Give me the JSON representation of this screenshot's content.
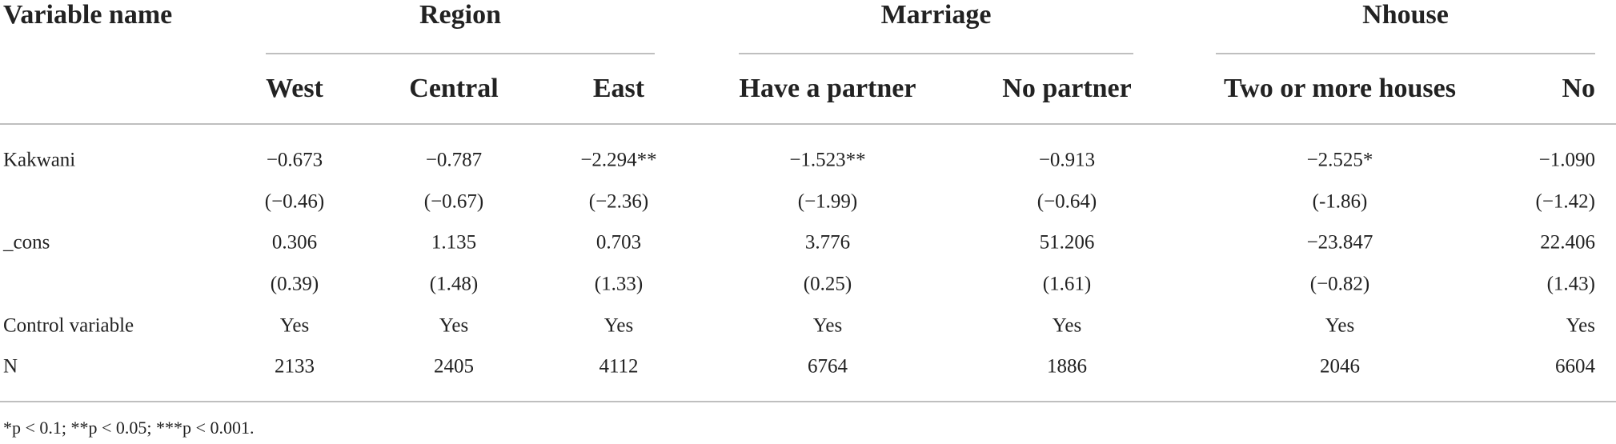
{
  "header": {
    "first": "Variable name",
    "groups": [
      {
        "label": "Region",
        "columns": [
          "West",
          "Central",
          "East"
        ]
      },
      {
        "label": "Marriage",
        "columns": [
          "Have a partner",
          "No partner"
        ]
      },
      {
        "label": "Nhouse",
        "columns": [
          "Two or more houses",
          "No"
        ]
      }
    ]
  },
  "table": {
    "rows": [
      {
        "label": "Kakwani",
        "values": [
          "−0.673",
          "−0.787",
          "−2.294**",
          "−1.523**",
          "−0.913",
          "−2.525*",
          "−1.090"
        ]
      },
      {
        "values": [
          "(−0.46)",
          "(−0.67)",
          "(−2.36)",
          "(−1.99)",
          "(−0.64)",
          "(-1.86)",
          "(−1.42)"
        ]
      },
      {
        "label": "_cons",
        "values": [
          "0.306",
          "1.135",
          "0.703",
          "3.776",
          "51.206",
          "−23.847",
          "22.406"
        ]
      },
      {
        "values": [
          "(0.39)",
          "(1.48)",
          "(1.33)",
          "(0.25)",
          "(1.61)",
          "(−0.82)",
          "(1.43)"
        ]
      },
      {
        "label": "Control variable",
        "values": [
          "Yes",
          "Yes",
          "Yes",
          "Yes",
          "Yes",
          "Yes",
          "Yes"
        ]
      },
      {
        "label": "N",
        "values": [
          "2133",
          "2405",
          "4112",
          "6764",
          "1886",
          "2046",
          "6604"
        ]
      }
    ]
  },
  "footnote": "*p < 0.1; **p < 0.05; ***p < 0.001."
}
